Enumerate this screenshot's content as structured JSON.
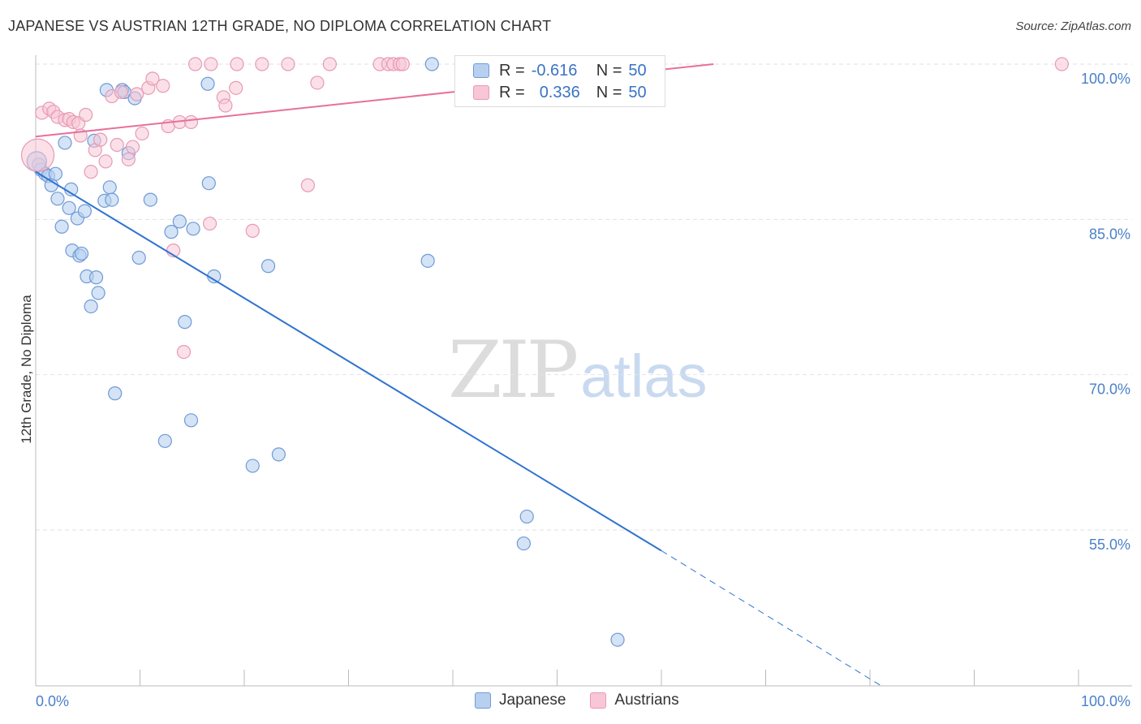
{
  "title": "JAPANESE VS AUSTRIAN 12TH GRADE, NO DIPLOMA CORRELATION CHART",
  "source": "Source: ZipAtlas.com",
  "watermark": {
    "zip": "ZIP",
    "atlas": "atlas"
  },
  "legend": {
    "r_label": "R =",
    "n_label": "N =",
    "rows": [
      {
        "r": "-0.616",
        "n": "50"
      },
      {
        "r": "0.336",
        "n": "50"
      }
    ]
  },
  "bottom_legend": [
    "Japanese",
    "Austrians"
  ],
  "colors": {
    "japanese_fill": "#b8d0f0",
    "japanese_stroke": "#6f9ad6",
    "japanese_line": "#2f73d0",
    "austrian_fill": "#f8c6d6",
    "austrian_stroke": "#e79ab4",
    "austrian_line": "#e8709a",
    "tick_text": "#4a80c8"
  },
  "chart_data": {
    "type": "scatter",
    "title": "JAPANESE VS AUSTRIAN 12TH GRADE, NO DIPLOMA CORRELATION CHART",
    "xlabel": "",
    "ylabel": "12th Grade, No Diploma",
    "xlim": [
      0,
      100
    ],
    "ylim": [
      38.5,
      101.5
    ],
    "x_tick_labels": [
      "0.0%",
      "100.0%"
    ],
    "y_ticks": [
      100,
      85,
      70,
      55
    ],
    "y_tick_labels": [
      "100.0%",
      "85.0%",
      "70.0%",
      "55.0%"
    ],
    "grid": "horizontal dashed",
    "series": [
      {
        "name": "Japanese",
        "r": -0.616,
        "n": 50,
        "points": [
          [
            0.3,
            90.3
          ],
          [
            0.5,
            89.8
          ],
          [
            0.9,
            89.4
          ],
          [
            1.2,
            89.2
          ],
          [
            1.5,
            88.3
          ],
          [
            1.9,
            89.4
          ],
          [
            2.1,
            87.0
          ],
          [
            2.5,
            84.3
          ],
          [
            2.8,
            92.4
          ],
          [
            3.2,
            86.1
          ],
          [
            3.4,
            87.9
          ],
          [
            3.5,
            82.0
          ],
          [
            4.0,
            85.1
          ],
          [
            4.2,
            81.5
          ],
          [
            4.4,
            81.7
          ],
          [
            4.7,
            85.8
          ],
          [
            4.9,
            79.5
          ],
          [
            5.3,
            76.6
          ],
          [
            5.6,
            92.6
          ],
          [
            5.8,
            79.4
          ],
          [
            6.0,
            77.9
          ],
          [
            6.6,
            86.8
          ],
          [
            6.8,
            97.5
          ],
          [
            7.1,
            88.1
          ],
          [
            7.3,
            86.9
          ],
          [
            7.6,
            68.2
          ],
          [
            8.3,
            97.5
          ],
          [
            8.5,
            97.3
          ],
          [
            8.9,
            91.4
          ],
          [
            9.5,
            96.7
          ],
          [
            9.9,
            81.3
          ],
          [
            11.0,
            86.9
          ],
          [
            12.4,
            63.6
          ],
          [
            13.0,
            83.8
          ],
          [
            13.8,
            84.8
          ],
          [
            14.3,
            75.1
          ],
          [
            14.9,
            65.6
          ],
          [
            15.1,
            84.1
          ],
          [
            16.5,
            98.1
          ],
          [
            16.6,
            88.5
          ],
          [
            17.1,
            79.5
          ],
          [
            20.8,
            61.2
          ],
          [
            22.3,
            80.5
          ],
          [
            23.3,
            62.3
          ],
          [
            37.6,
            81.0
          ],
          [
            38.0,
            100.0
          ],
          [
            46.8,
            53.7
          ],
          [
            47.1,
            56.3
          ],
          [
            55.8,
            44.4
          ],
          [
            0.1,
            90.6
          ]
        ],
        "trend": {
          "x0": 0,
          "y0": 89.6,
          "x1": 60,
          "y1": 53.0,
          "dashed_to_x": 81,
          "dashed_to_y": 40.0
        }
      },
      {
        "name": "Austrians",
        "r": 0.336,
        "n": 50,
        "points": [
          [
            0.2,
            91.2
          ],
          [
            0.6,
            95.3
          ],
          [
            1.3,
            95.7
          ],
          [
            1.7,
            95.4
          ],
          [
            2.1,
            94.9
          ],
          [
            2.8,
            94.6
          ],
          [
            3.2,
            94.7
          ],
          [
            3.6,
            94.4
          ],
          [
            4.1,
            94.3
          ],
          [
            4.3,
            93.1
          ],
          [
            4.8,
            95.1
          ],
          [
            5.3,
            89.6
          ],
          [
            5.7,
            91.7
          ],
          [
            6.2,
            92.7
          ],
          [
            6.7,
            90.6
          ],
          [
            7.3,
            96.9
          ],
          [
            7.8,
            92.2
          ],
          [
            8.2,
            97.3
          ],
          [
            8.9,
            90.8
          ],
          [
            9.3,
            92.0
          ],
          [
            9.7,
            97.1
          ],
          [
            10.2,
            93.3
          ],
          [
            10.8,
            97.7
          ],
          [
            11.2,
            98.6
          ],
          [
            12.2,
            97.9
          ],
          [
            12.7,
            94.0
          ],
          [
            13.2,
            82.0
          ],
          [
            13.8,
            94.4
          ],
          [
            14.2,
            72.2
          ],
          [
            14.9,
            94.4
          ],
          [
            15.3,
            100.0
          ],
          [
            16.7,
            84.6
          ],
          [
            16.8,
            100.0
          ],
          [
            18.0,
            96.8
          ],
          [
            18.2,
            96.0
          ],
          [
            19.3,
            100.0
          ],
          [
            19.2,
            97.7
          ],
          [
            20.8,
            83.9
          ],
          [
            21.7,
            100.0
          ],
          [
            24.2,
            100.0
          ],
          [
            26.1,
            88.3
          ],
          [
            27.0,
            98.2
          ],
          [
            28.2,
            100.0
          ],
          [
            33.0,
            100.0
          ],
          [
            33.8,
            100.0
          ],
          [
            34.3,
            100.0
          ],
          [
            34.9,
            100.0
          ],
          [
            35.2,
            100.0
          ],
          [
            41.0,
            100.0
          ],
          [
            98.4,
            100.0
          ]
        ],
        "trend": {
          "x0": 0,
          "y0": 93.0,
          "x1": 65,
          "y1": 100.0
        }
      }
    ]
  }
}
